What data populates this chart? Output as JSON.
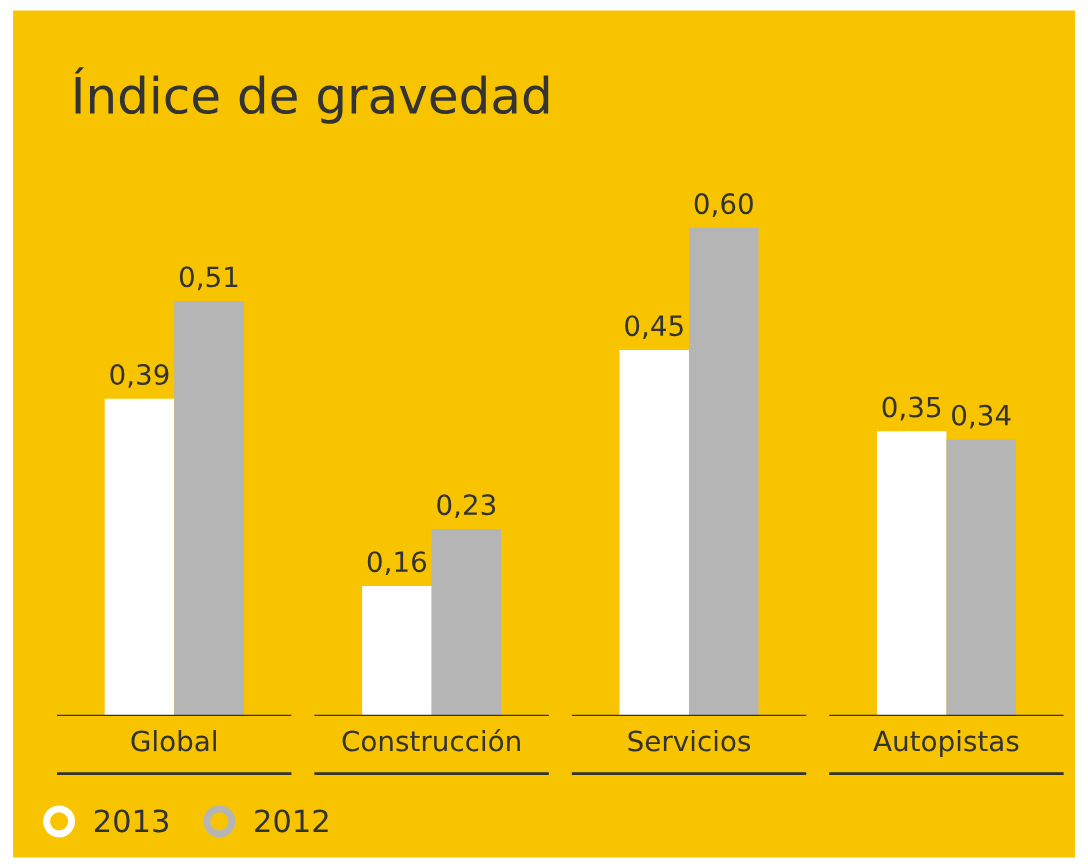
{
  "chart_data": {
    "type": "bar",
    "title": "Índice de gravedad",
    "categories": [
      "Global",
      "Construcción",
      "Servicios",
      "Autopistas"
    ],
    "series": [
      {
        "name": "2013",
        "color": "#ffffff",
        "values": [
          0.39,
          0.16,
          0.45,
          0.35
        ],
        "value_labels": [
          "0,39",
          "0,16",
          "0,45",
          "0,35"
        ]
      },
      {
        "name": "2012",
        "color": "#b5b5b5",
        "values": [
          0.51,
          0.23,
          0.6,
          0.34
        ],
        "value_labels": [
          "0,51",
          "0,23",
          "0,60",
          "0,34"
        ]
      }
    ],
    "legend": "bottom left"
  }
}
